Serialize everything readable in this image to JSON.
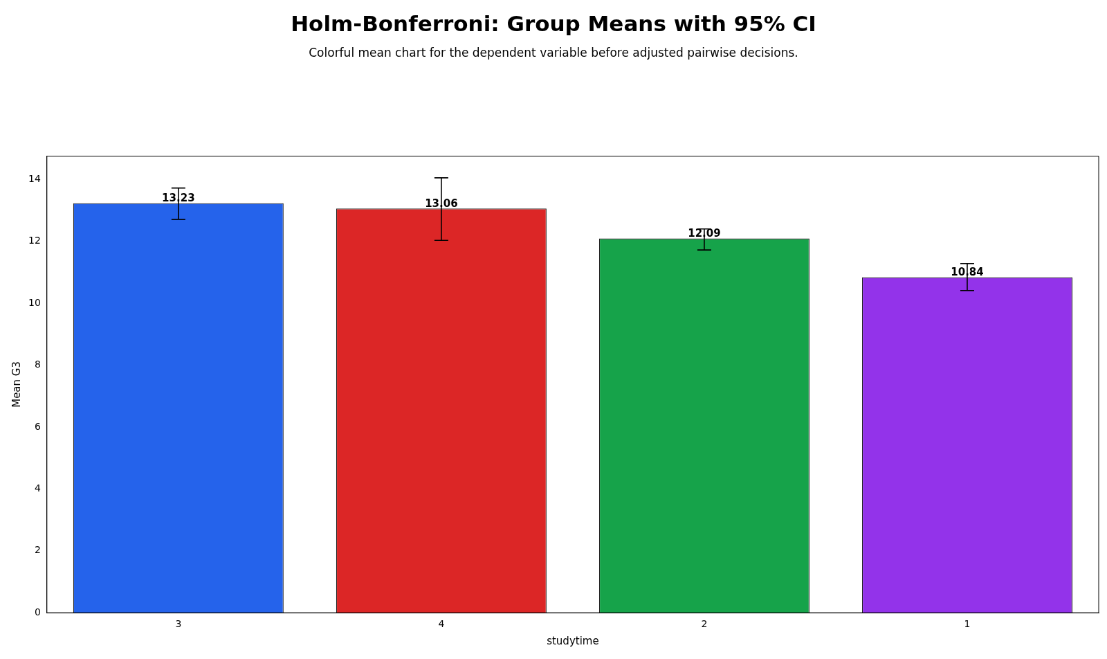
{
  "chart_data": {
    "type": "bar",
    "title": "Holm-Bonferroni: Group Means with 95% CI",
    "subtitle": "Colorful mean chart for the dependent variable before adjusted pairwise decisions.",
    "xlabel": "studytime",
    "ylabel": "Mean G3",
    "categories": [
      "3",
      "4",
      "2",
      "1"
    ],
    "values": [
      13.23,
      13.06,
      12.09,
      10.84
    ],
    "colors": [
      "#2563eb",
      "#dc2626",
      "#16a34a",
      "#9333ea"
    ],
    "errors": [
      [
        12.71,
        13.72
      ],
      [
        12.03,
        14.05
      ],
      [
        11.72,
        12.4
      ],
      [
        10.41,
        11.28
      ]
    ],
    "data_labels": true,
    "ylim": [
      0,
      14.75
    ],
    "yticks": [
      0,
      2,
      4,
      6,
      8,
      10,
      12,
      14
    ],
    "grid": false,
    "legend": false
  }
}
